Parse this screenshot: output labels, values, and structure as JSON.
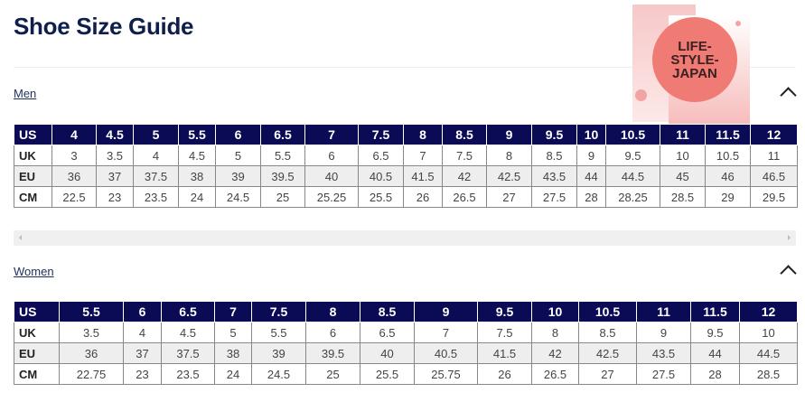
{
  "page": {
    "title": "Shoe Size Guide"
  },
  "logo": {
    "lines": [
      "LIFE-",
      "STYLE-",
      "JAPAN"
    ]
  },
  "men": {
    "label": "Men",
    "rows": [
      {
        "label": "US",
        "values": [
          "4",
          "4.5",
          "5",
          "5.5",
          "6",
          "6.5",
          "7",
          "7.5",
          "8",
          "8.5",
          "9",
          "9.5",
          "10",
          "10.5",
          "11",
          "11.5",
          "12"
        ]
      },
      {
        "label": "UK",
        "values": [
          "3",
          "3.5",
          "4",
          "4.5",
          "5",
          "5.5",
          "6",
          "6.5",
          "7",
          "7.5",
          "8",
          "8.5",
          "9",
          "9.5",
          "10",
          "10.5",
          "11"
        ]
      },
      {
        "label": "EU",
        "values": [
          "36",
          "37",
          "37.5",
          "38",
          "39",
          "39.5",
          "40",
          "40.5",
          "41.5",
          "42",
          "42.5",
          "43.5",
          "44",
          "44.5",
          "45",
          "46",
          "46.5"
        ]
      },
      {
        "label": "CM",
        "values": [
          "22.5",
          "23",
          "23.5",
          "24",
          "24.5",
          "25",
          "25.25",
          "25.5",
          "26",
          "26.5",
          "27",
          "27.5",
          "28",
          "28.25",
          "28.5",
          "29",
          "29.5"
        ]
      }
    ]
  },
  "women": {
    "label": "Women",
    "rows": [
      {
        "label": "US",
        "values": [
          "5.5",
          "6",
          "6.5",
          "7",
          "7.5",
          "8",
          "8.5",
          "9",
          "9.5",
          "10",
          "10.5",
          "11",
          "11.5",
          "12"
        ]
      },
      {
        "label": "UK",
        "values": [
          "3.5",
          "4",
          "4.5",
          "5",
          "5.5",
          "6",
          "6.5",
          "7",
          "7.5",
          "8",
          "8.5",
          "9",
          "9.5",
          "10"
        ]
      },
      {
        "label": "EU",
        "values": [
          "36",
          "37",
          "37.5",
          "38",
          "39",
          "39.5",
          "40",
          "40.5",
          "41.5",
          "42",
          "42.5",
          "43.5",
          "44",
          "44.5"
        ]
      },
      {
        "label": "CM",
        "values": [
          "22.75",
          "23",
          "23.5",
          "24",
          "24.5",
          "25",
          "25.5",
          "25.75",
          "26",
          "26.5",
          "27",
          "27.5",
          "28",
          "28.5"
        ]
      }
    ]
  },
  "colors": {
    "header_bg": "#0b0b55",
    "title": "#0f1f4b"
  }
}
